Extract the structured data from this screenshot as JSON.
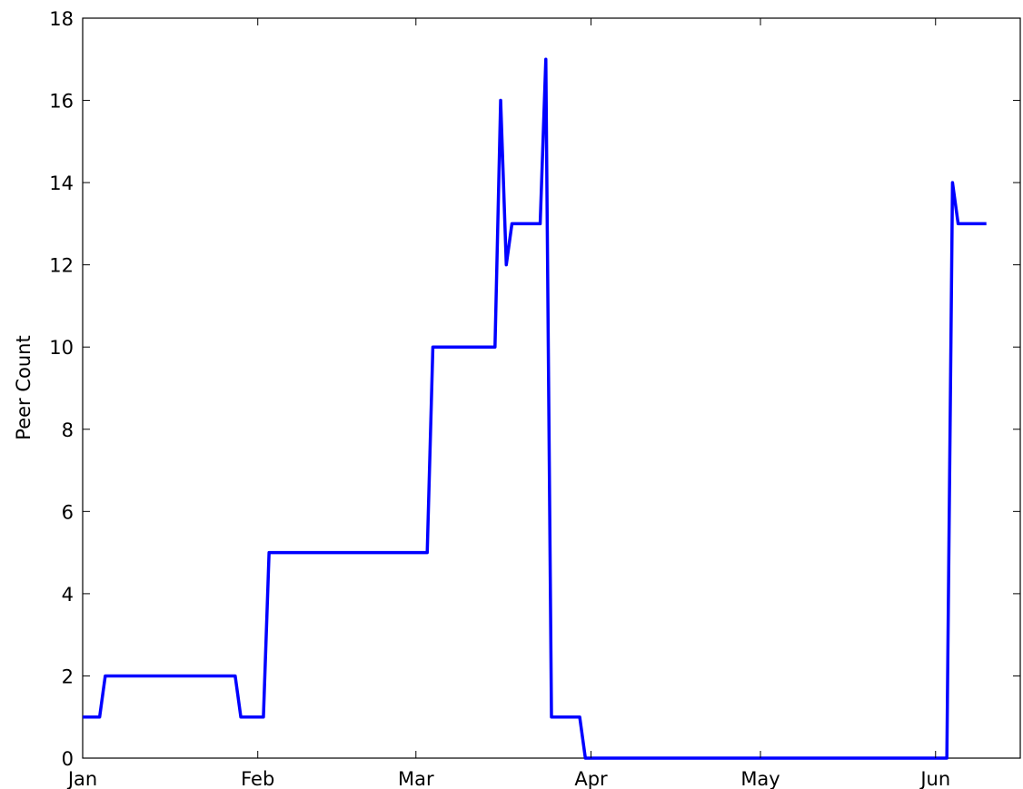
{
  "chart_data": {
    "type": "line",
    "title": "",
    "xlabel": "",
    "ylabel": "Peer Count",
    "x_axis_kind": "date",
    "xlim": [
      "2014-01-01",
      "2014-06-16"
    ],
    "ylim": [
      0,
      18
    ],
    "yticks": [
      0,
      2,
      4,
      6,
      8,
      10,
      12,
      14,
      16,
      18
    ],
    "xticks": [
      {
        "date": "2014-01-01",
        "label": "Jan"
      },
      {
        "date": "2014-02-01",
        "label": "Feb"
      },
      {
        "date": "2014-03-01",
        "label": "Mar"
      },
      {
        "date": "2014-04-01",
        "label": "Apr"
      },
      {
        "date": "2014-05-01",
        "label": "May"
      },
      {
        "date": "2014-06-01",
        "label": "Jun"
      }
    ],
    "grid": false,
    "legend": "none",
    "series": [
      {
        "color": "#0000ff",
        "points": [
          [
            "2014-01-01",
            1
          ],
          [
            "2014-01-04",
            1
          ],
          [
            "2014-01-05",
            2
          ],
          [
            "2014-01-28",
            2
          ],
          [
            "2014-01-29",
            1
          ],
          [
            "2014-02-02",
            1
          ],
          [
            "2014-02-03",
            5
          ],
          [
            "2014-03-03",
            5
          ],
          [
            "2014-03-04",
            10
          ],
          [
            "2014-03-15",
            10
          ],
          [
            "2014-03-16",
            16
          ],
          [
            "2014-03-17",
            12
          ],
          [
            "2014-03-18",
            13
          ],
          [
            "2014-03-23",
            13
          ],
          [
            "2014-03-24",
            17
          ],
          [
            "2014-03-25",
            1
          ],
          [
            "2014-03-30",
            1
          ],
          [
            "2014-03-31",
            0
          ],
          [
            "2014-06-03",
            0
          ],
          [
            "2014-06-04",
            14
          ],
          [
            "2014-06-05",
            13
          ],
          [
            "2014-06-10",
            13
          ]
        ]
      }
    ]
  }
}
